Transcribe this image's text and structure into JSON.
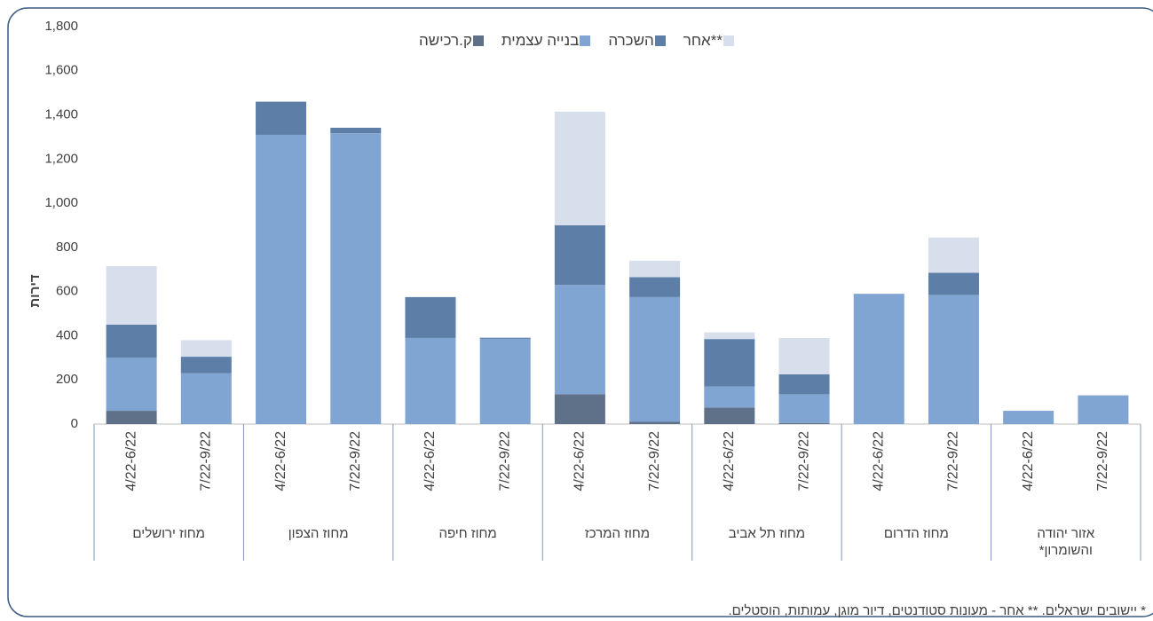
{
  "chart_data": {
    "type": "stacked_bar",
    "y_label": "דירות",
    "groups": [
      "מחוז ירושלים",
      "מחוז הצפון",
      "מחוז חיפה",
      "מחוז המרכז",
      "מחוז תל אביב",
      "מחוז הדרום",
      "אזור יהודה והשומרון*"
    ],
    "categories": [
      "4/22-6/22",
      "7/22-9/22",
      "4/22-6/22",
      "7/22-9/22",
      "4/22-6/22",
      "7/22-9/22",
      "4/22-6/22",
      "7/22-9/22",
      "4/22-6/22",
      "7/22-9/22",
      "4/22-6/22",
      "7/22-9/22",
      "4/22-6/22",
      "7/22-9/22"
    ],
    "series": [
      {
        "name": "ק.רכישה",
        "color": "#5f7089",
        "values": [
          60,
          0,
          0,
          0,
          0,
          0,
          135,
          10,
          75,
          5,
          0,
          0,
          0,
          0
        ]
      },
      {
        "name": "בנייה עצמית",
        "color": "#80a5d2",
        "values": [
          240,
          230,
          1310,
          1317,
          390,
          386,
          495,
          565,
          95,
          130,
          590,
          585,
          60,
          130
        ]
      },
      {
        "name": "השכרה",
        "color": "#5c7ea7",
        "values": [
          150,
          75,
          150,
          25,
          185,
          5,
          270,
          90,
          215,
          90,
          0,
          100,
          0,
          0
        ]
      },
      {
        "name": "אחר**",
        "color": "#d7dfec",
        "values": [
          265,
          75,
          0,
          0,
          0,
          0,
          515,
          75,
          30,
          165,
          0,
          160,
          0,
          0
        ]
      }
    ],
    "ylim": [
      0,
      1800
    ],
    "yticks": [
      0,
      {
        "value": 200,
        "label": "200"
      },
      {
        "value": 400,
        "label": "400"
      },
      {
        "value": 600,
        "label": "600"
      },
      {
        "value": 800,
        "label": "800"
      },
      {
        "value": 1000,
        "label": "1,000"
      },
      {
        "value": 1200,
        "label": "1,200"
      },
      {
        "value": 1400,
        "label": "1,400"
      },
      {
        "value": 1600,
        "label": "1,600"
      },
      {
        "value": 1800,
        "label": "1,800"
      }
    ],
    "footnote": "* יישובים ישראלים. ** אחר - מעונות סטודנטים, דיור מוגן, עמותות, הוסטלים."
  }
}
